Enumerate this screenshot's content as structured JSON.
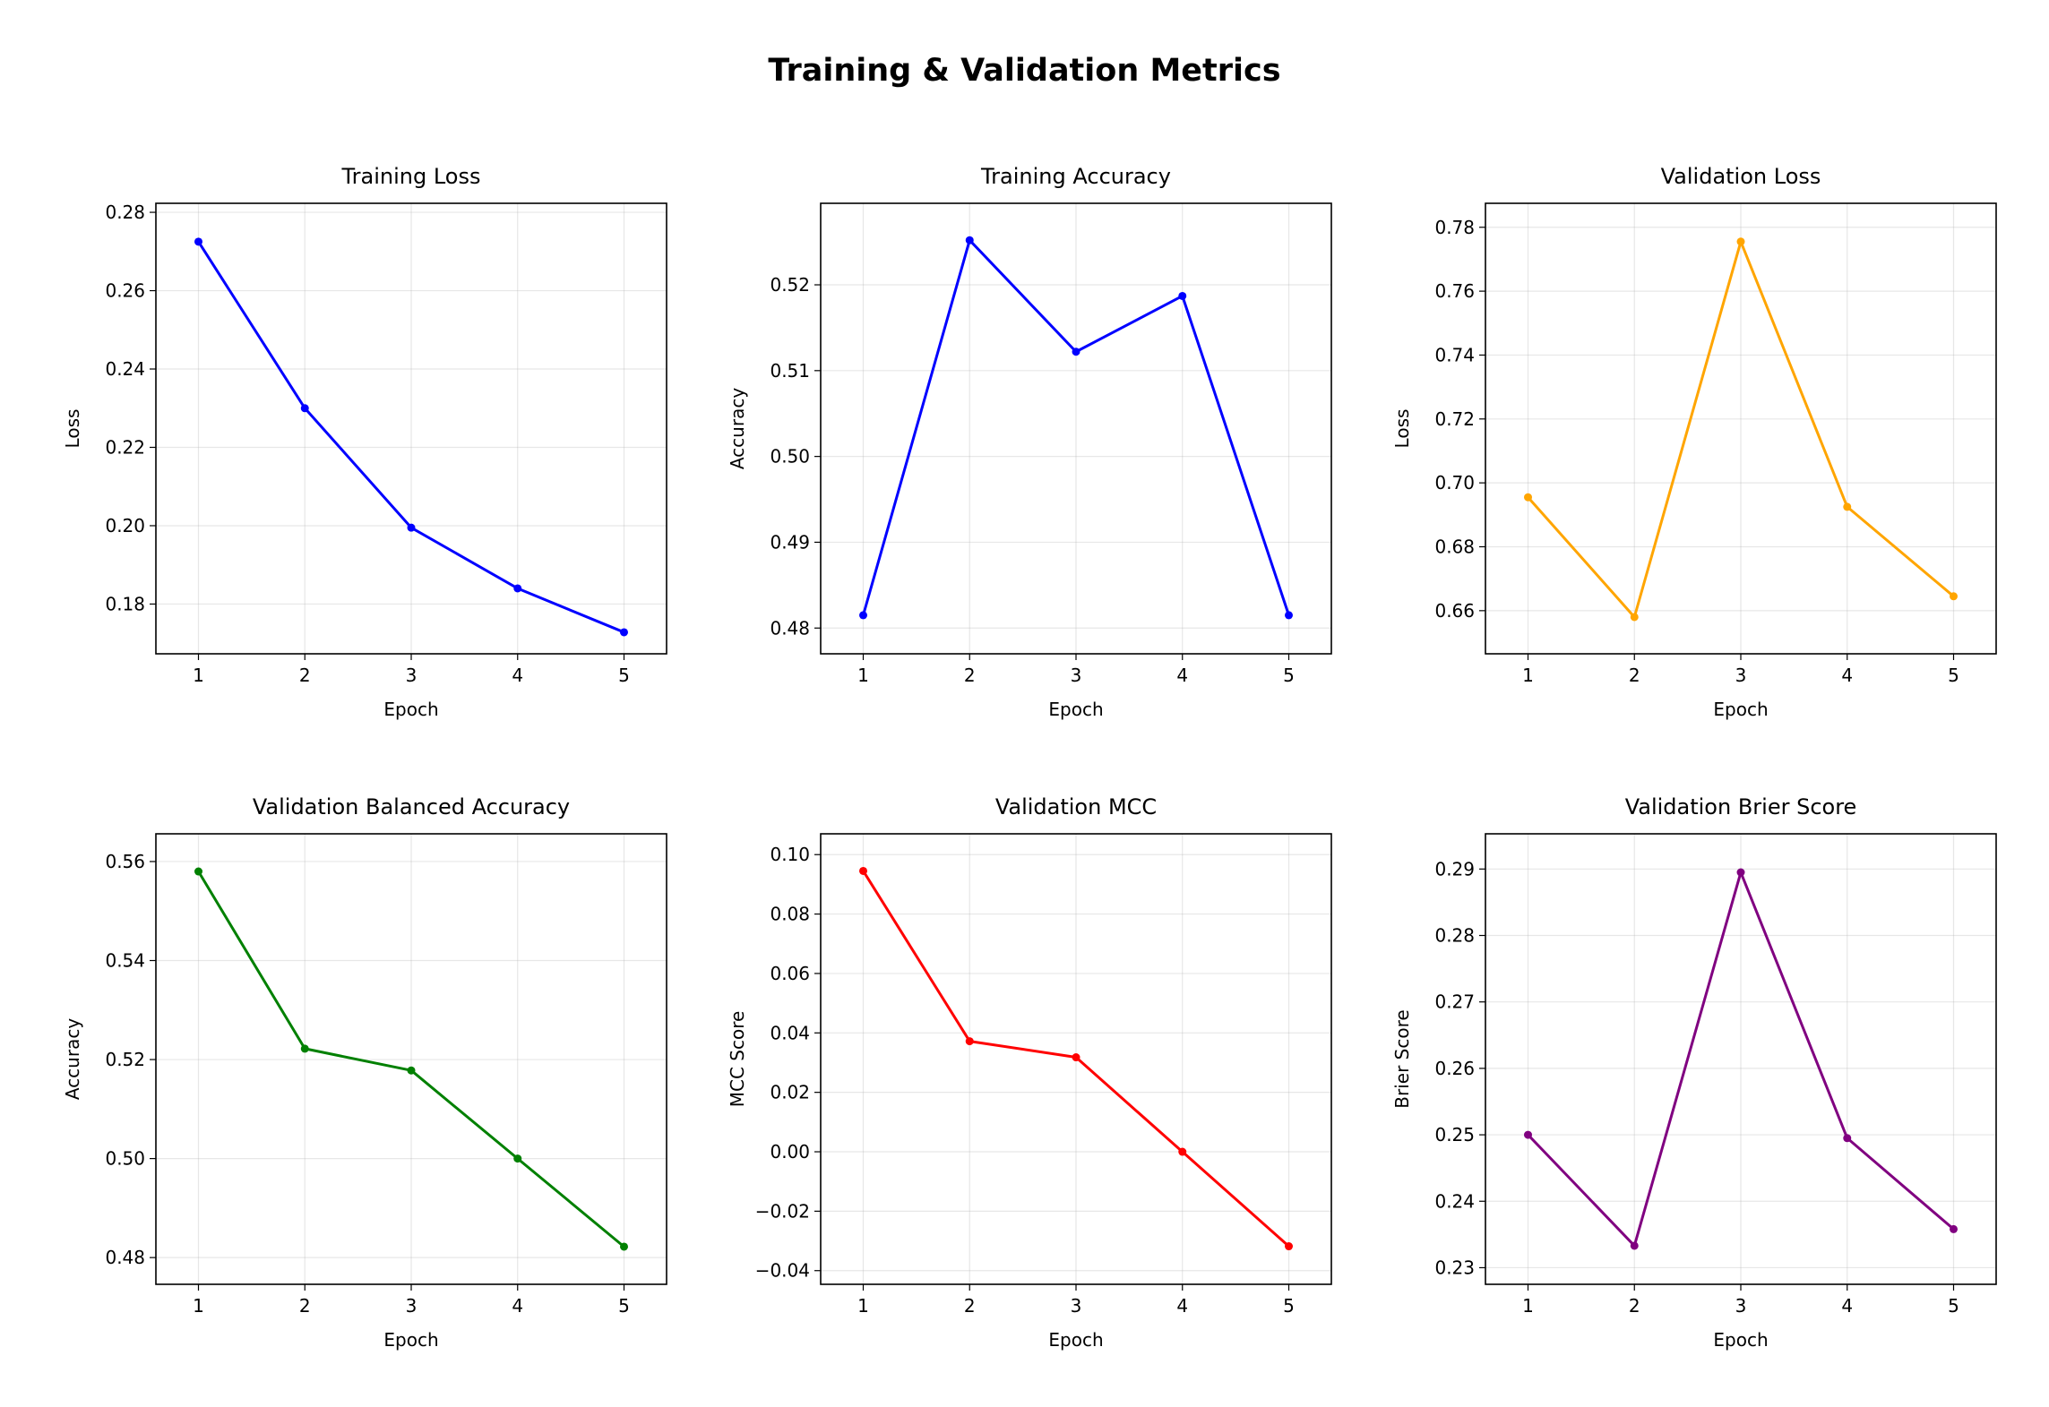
{
  "title": "Training & Validation Metrics",
  "chart_data": [
    {
      "type": "line",
      "title": "Training Loss",
      "xlabel": "Epoch",
      "ylabel": "Loss",
      "x": [
        1,
        2,
        3,
        4,
        5
      ],
      "values": [
        0.2725,
        0.23,
        0.1995,
        0.184,
        0.1728
      ],
      "xlim": [
        0.6,
        5.4
      ],
      "ylim": [
        0.1673,
        0.2823
      ],
      "yticks": [
        "0.18",
        "0.20",
        "0.22",
        "0.24",
        "0.26",
        "0.28"
      ],
      "xticks": [
        "1",
        "2",
        "3",
        "4",
        "5"
      ],
      "grid": true,
      "color": "#0000ff"
    },
    {
      "type": "line",
      "title": "Training Accuracy",
      "xlabel": "Epoch",
      "ylabel": "Accuracy",
      "x": [
        1,
        2,
        3,
        4,
        5
      ],
      "values": [
        0.4815,
        0.5252,
        0.5122,
        0.5187,
        0.4815
      ],
      "xlim": [
        0.6,
        5.4
      ],
      "ylim": [
        0.477,
        0.5295
      ],
      "yticks": [
        "0.48",
        "0.49",
        "0.50",
        "0.51",
        "0.52"
      ],
      "xticks": [
        "1",
        "2",
        "3",
        "4",
        "5"
      ],
      "grid": true,
      "color": "#0000ff"
    },
    {
      "type": "line",
      "title": "Validation Loss",
      "xlabel": "Epoch",
      "ylabel": "Loss",
      "x": [
        1,
        2,
        3,
        4,
        5
      ],
      "values": [
        0.6955,
        0.658,
        0.7755,
        0.6925,
        0.6645
      ],
      "xlim": [
        0.6,
        5.4
      ],
      "ylim": [
        0.6465,
        0.7875
      ],
      "yticks": [
        "0.66",
        "0.68",
        "0.70",
        "0.72",
        "0.74",
        "0.76",
        "0.78"
      ],
      "xticks": [
        "1",
        "2",
        "3",
        "4",
        "5"
      ],
      "grid": true,
      "color": "#ffa500"
    },
    {
      "type": "line",
      "title": "Validation Balanced Accuracy",
      "xlabel": "Epoch",
      "ylabel": "Accuracy",
      "x": [
        1,
        2,
        3,
        4,
        5
      ],
      "values": [
        0.558,
        0.5222,
        0.5178,
        0.5,
        0.4822
      ],
      "xlim": [
        0.6,
        5.4
      ],
      "ylim": [
        0.4746,
        0.5656
      ],
      "yticks": [
        "0.48",
        "0.50",
        "0.52",
        "0.54",
        "0.56"
      ],
      "xticks": [
        "1",
        "2",
        "3",
        "4",
        "5"
      ],
      "grid": true,
      "color": "#008000"
    },
    {
      "type": "line",
      "title": "Validation MCC",
      "xlabel": "Epoch",
      "ylabel": "MCC Score",
      "x": [
        1,
        2,
        3,
        4,
        5
      ],
      "values": [
        0.0945,
        0.0372,
        0.0318,
        0.0,
        -0.0318
      ],
      "xlim": [
        0.6,
        5.4
      ],
      "ylim": [
        -0.0446,
        0.107
      ],
      "yticks": [
        "−0.04",
        "−0.02",
        "0.00",
        "0.02",
        "0.04",
        "0.06",
        "0.08",
        "0.10"
      ],
      "xticks": [
        "1",
        "2",
        "3",
        "4",
        "5"
      ],
      "grid": true,
      "color": "#ff0000"
    },
    {
      "type": "line",
      "title": "Validation Brier Score",
      "xlabel": "Epoch",
      "ylabel": "Brier Score",
      "x": [
        1,
        2,
        3,
        4,
        5
      ],
      "values": [
        0.25,
        0.2333,
        0.2895,
        0.2495,
        0.2358
      ],
      "xlim": [
        0.6,
        5.4
      ],
      "ylim": [
        0.2275,
        0.2953
      ],
      "yticks": [
        "0.23",
        "0.24",
        "0.25",
        "0.26",
        "0.27",
        "0.28",
        "0.29"
      ],
      "xticks": [
        "1",
        "2",
        "3",
        "4",
        "5"
      ],
      "grid": true,
      "color": "#800080"
    }
  ]
}
